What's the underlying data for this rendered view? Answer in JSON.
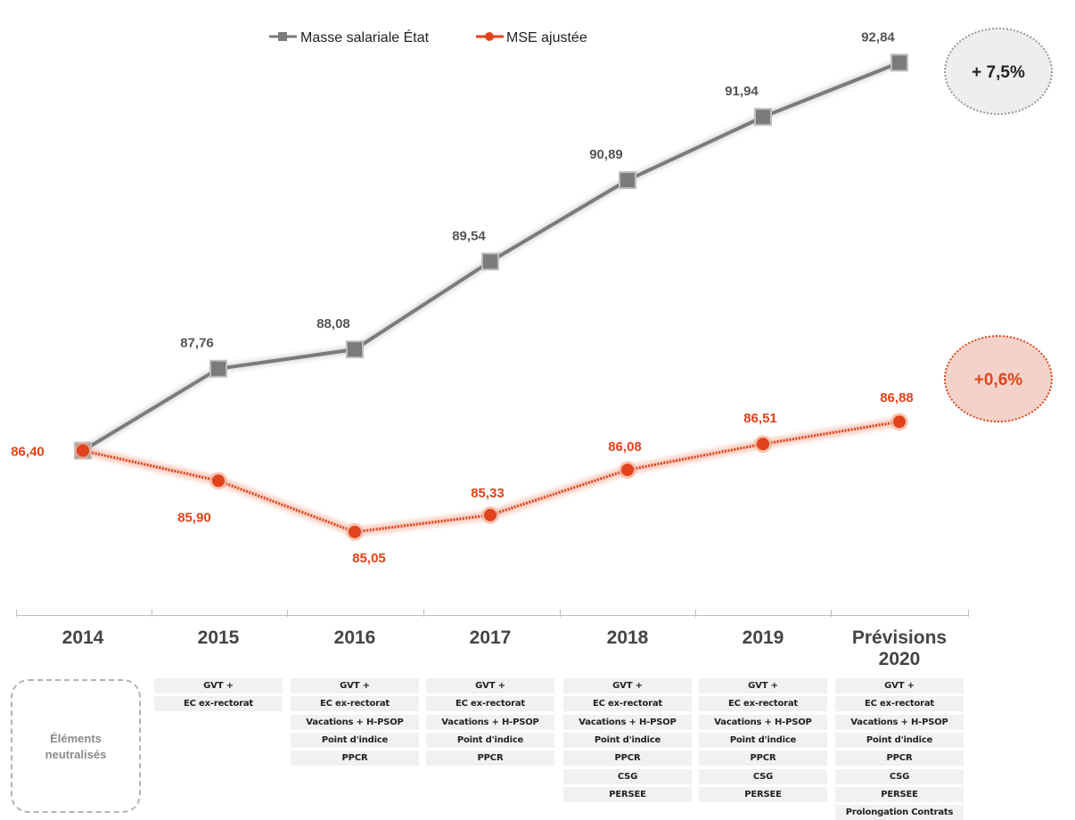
{
  "chart_data": {
    "type": "line",
    "categories": [
      "2014",
      "2015",
      "2016",
      "2017",
      "2018",
      "2019",
      "Prévisions\n2020"
    ],
    "series": [
      {
        "name": "Masse salariale État",
        "color": "#7b7b7b",
        "marker": "square",
        "values": [
          86.4,
          87.76,
          88.08,
          89.54,
          90.89,
          91.94,
          92.84
        ],
        "labels": [
          "",
          "87,76",
          "88,08",
          "89,54",
          "90,89",
          "91,94",
          "92,84"
        ]
      },
      {
        "name": "MSE ajustée",
        "color": "#e2431c",
        "marker": "circle",
        "values": [
          86.4,
          85.9,
          85.05,
          85.33,
          86.08,
          86.51,
          86.88
        ],
        "labels": [
          "86,40",
          "85,90",
          "85,05",
          "85,33",
          "86,08",
          "86,51",
          "86,88"
        ]
      }
    ],
    "ylim": [
      84.5,
      93.2
    ],
    "legend_placement": "top-center",
    "grid": false,
    "annotations": [
      {
        "text": "+ 7,5%",
        "series": 0,
        "fill": "#eeeeee",
        "stroke": "#999999",
        "text_color": "#222222"
      },
      {
        "text": "+0,6%",
        "series": 1,
        "fill": "#f3d3c9",
        "stroke": "#e2431c",
        "text_color": "#e2431c"
      }
    ]
  },
  "neutralized": {
    "label": "Éléments\nneutralisés",
    "columns": [
      [],
      [
        "GVT +",
        "EC ex-rectorat"
      ],
      [
        "GVT +",
        "EC ex-rectorat",
        "Vacations + H-PSOP",
        "Point d'indice",
        "PPCR"
      ],
      [
        "GVT +",
        "EC ex-rectorat",
        "Vacations + H-PSOP",
        "Point d'indice",
        "PPCR"
      ],
      [
        "GVT +",
        "EC ex-rectorat",
        "Vacations + H-PSOP",
        "Point d'indice",
        "PPCR",
        "CSG",
        "PERSEE"
      ],
      [
        "GVT +",
        "EC ex-rectorat",
        "Vacations + H-PSOP",
        "Point d'indice",
        "PPCR",
        "CSG",
        "PERSEE"
      ],
      [
        "GVT +",
        "EC ex-rectorat",
        "Vacations + H-PSOP",
        "Point d'indice",
        "PPCR",
        "CSG",
        "PERSEE",
        "Prolongation Contrats"
      ]
    ]
  }
}
